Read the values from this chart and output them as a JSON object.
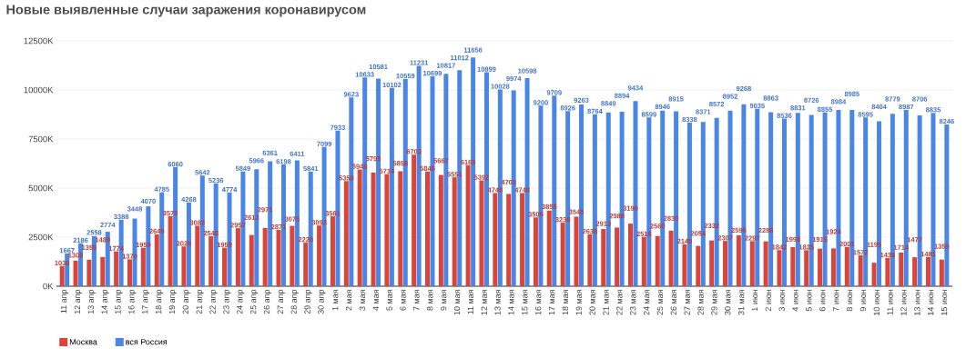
{
  "chart_data": {
    "type": "bar",
    "title": "Новые выявленные случаи заражения коронавирусом",
    "categories": [
      "11 апр",
      "12 апр",
      "13 апр",
      "14 апр",
      "15 апр",
      "16 апр",
      "17 апр",
      "18 апр",
      "19 апр",
      "20 апр",
      "21 апр",
      "22 апр",
      "23 апр",
      "24 апр",
      "25 апр",
      "26 апр",
      "27 апр",
      "28 апр",
      "29 апр",
      "30 апр",
      "1 мая",
      "2 мая",
      "3 мая",
      "4 мая",
      "5 мая",
      "6 мая",
      "7 мая",
      "8 мая",
      "9 мая",
      "10 мая",
      "11 мая",
      "12 мая",
      "13 мая",
      "14 мая",
      "15 мая",
      "16 мая",
      "17 мая",
      "18 мая",
      "19 мая",
      "20 мая",
      "21 мая",
      "22 мая",
      "23 мая",
      "24 мая",
      "25 мая",
      "26 мая",
      "27 мая",
      "28 мая",
      "29 мая",
      "30 мая",
      "31 мая",
      "1 июн",
      "2 июн",
      "3 июн",
      "4 июн",
      "5 июн",
      "6 июн",
      "7 июн",
      "8 июн",
      "9 июн",
      "10 июн",
      "11 июн",
      "12 июн",
      "13 июн",
      "14 июн",
      "15 июн"
    ],
    "series": [
      {
        "name": "Москва",
        "color": "#db4437",
        "values": [
          1030,
          1306,
          1355,
          1489,
          1774,
          1370,
          1959,
          2649,
          3570,
          2026,
          3083,
          2548,
          1959,
          2957,
          2612,
          2971,
          2871,
          3075,
          2220,
          3093,
          3561,
          5358,
          5948,
          5795,
          5714,
          5858,
          6703,
          5846,
          5667,
          5551,
          6169,
          5392,
          4748,
          4703,
          4748,
          3505,
          3855,
          3238,
          3545,
          2638,
          2913,
          2988,
          3190,
          2516,
          2560,
          2830,
          2140,
          2054,
          2332,
          2307,
          2595,
          2297,
          2286,
          1842,
          1998,
          1835,
          1915,
          1924,
          2001,
          1572,
          1195,
          1436,
          1714,
          1477,
          1481,
          1359
        ]
      },
      {
        "name": "вся Россия",
        "color": "#4a86e8",
        "values": [
          1667,
          2186,
          2558,
          2774,
          3388,
          3448,
          4070,
          4785,
          6060,
          4268,
          5642,
          5236,
          4774,
          5849,
          5966,
          6361,
          6198,
          6411,
          5841,
          7099,
          7933,
          9623,
          10633,
          10581,
          10102,
          10559,
          11231,
          10699,
          10817,
          11012,
          11656,
          10899,
          10028,
          9974,
          10598,
          9200,
          9709,
          8926,
          9263,
          8764,
          8849,
          8894,
          9434,
          8599,
          8946,
          8915,
          8338,
          8371,
          8572,
          8952,
          9268,
          9035,
          8863,
          8536,
          8831,
          8726,
          8855,
          8984,
          8985,
          8595,
          8404,
          8779,
          8987,
          8706,
          8835,
          8246
        ]
      }
    ],
    "ylim": [
      0,
      12500
    ],
    "yticks": [
      {
        "value": 0,
        "label": "0K"
      },
      {
        "value": 2500,
        "label": "2500K"
      },
      {
        "value": 5000,
        "label": "5000K"
      },
      {
        "value": 7500,
        "label": "7500K"
      },
      {
        "value": 10000,
        "label": "10000K"
      },
      {
        "value": 12500,
        "label": "12500K"
      }
    ],
    "grid": "y",
    "legend": "bottom left",
    "data_labels": true
  }
}
